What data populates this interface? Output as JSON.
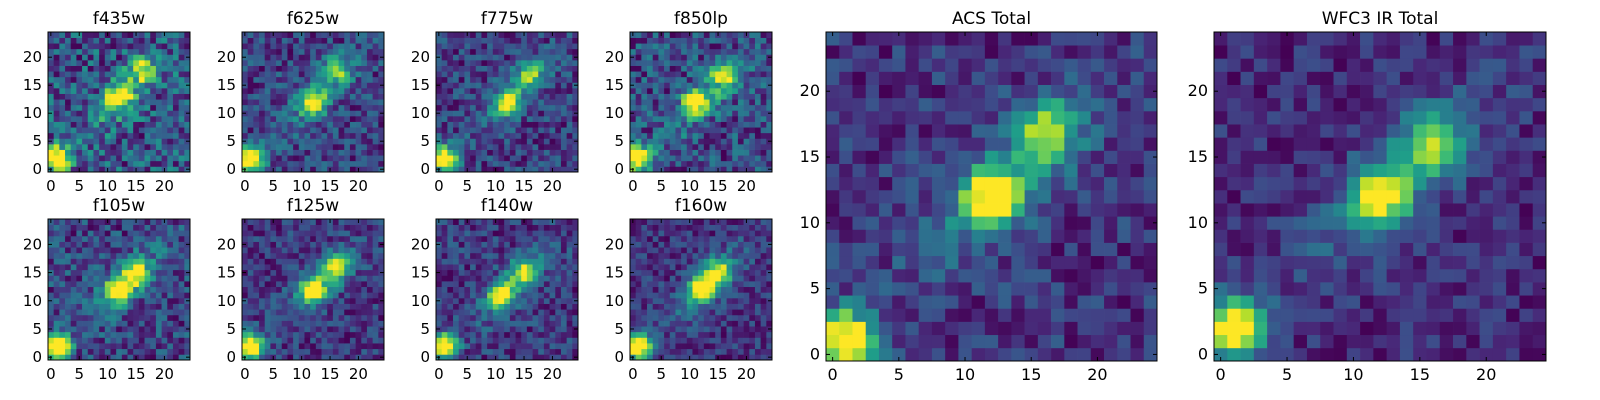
{
  "colors": {
    "colormap": "viridis",
    "frame": "#000000",
    "text": "#000000",
    "background": "#ffffff"
  },
  "chart_data": [
    {
      "type": "heatmap",
      "title": "f435w",
      "grid_size": 25,
      "xticks": [
        0,
        5,
        10,
        15,
        20
      ],
      "yticks": [
        0,
        5,
        10,
        15,
        20
      ],
      "xlim": [
        -0.5,
        24.5
      ],
      "ylim": [
        -0.5,
        24.5
      ],
      "source_peak": [
        1,
        2
      ],
      "clump_peaks": [
        [
          12,
          13
        ],
        [
          16,
          18
        ]
      ],
      "noise_level": 0.38,
      "colormap": "viridis"
    },
    {
      "type": "heatmap",
      "title": "f625w",
      "grid_size": 25,
      "xticks": [
        0,
        5,
        10,
        15,
        20
      ],
      "yticks": [
        0,
        5,
        10,
        15,
        20
      ],
      "xlim": [
        -0.5,
        24.5
      ],
      "ylim": [
        -0.5,
        24.5
      ],
      "source_peak": [
        1,
        2
      ],
      "clump_peaks": [
        [
          12,
          12
        ],
        [
          16,
          18
        ]
      ],
      "noise_level": 0.3,
      "colormap": "viridis"
    },
    {
      "type": "heatmap",
      "title": "f775w",
      "grid_size": 25,
      "xticks": [
        0,
        5,
        10,
        15,
        20
      ],
      "yticks": [
        0,
        5,
        10,
        15,
        20
      ],
      "xlim": [
        -0.5,
        24.5
      ],
      "ylim": [
        -0.5,
        24.5
      ],
      "source_peak": [
        1,
        2
      ],
      "clump_peaks": [
        [
          12,
          12
        ],
        [
          16,
          17
        ]
      ],
      "noise_level": 0.3,
      "colormap": "viridis"
    },
    {
      "type": "heatmap",
      "title": "f850lp",
      "grid_size": 25,
      "xticks": [
        0,
        5,
        10,
        15,
        20
      ],
      "yticks": [
        0,
        5,
        10,
        15,
        20
      ],
      "xlim": [
        -0.5,
        24.5
      ],
      "ylim": [
        -0.5,
        24.5
      ],
      "source_peak": [
        1,
        2
      ],
      "clump_peaks": [
        [
          11,
          12
        ],
        [
          16,
          17
        ]
      ],
      "noise_level": 0.33,
      "colormap": "viridis"
    },
    {
      "type": "heatmap",
      "title": "f105w",
      "grid_size": 25,
      "xticks": [
        0,
        5,
        10,
        15,
        20
      ],
      "yticks": [
        0,
        5,
        10,
        15,
        20
      ],
      "xlim": [
        -0.5,
        24.5
      ],
      "ylim": [
        -0.5,
        24.5
      ],
      "source_peak": [
        1,
        2
      ],
      "clump_peaks": [
        [
          12,
          12
        ],
        [
          15,
          15
        ]
      ],
      "noise_level": 0.28,
      "colormap": "viridis"
    },
    {
      "type": "heatmap",
      "title": "f125w",
      "grid_size": 25,
      "xticks": [
        0,
        5,
        10,
        15,
        20
      ],
      "yticks": [
        0,
        5,
        10,
        15,
        20
      ],
      "xlim": [
        -0.5,
        24.5
      ],
      "ylim": [
        -0.5,
        24.5
      ],
      "source_peak": [
        1,
        2
      ],
      "clump_peaks": [
        [
          12,
          12
        ],
        [
          16,
          16
        ]
      ],
      "noise_level": 0.24,
      "colormap": "viridis"
    },
    {
      "type": "heatmap",
      "title": "f140w",
      "grid_size": 25,
      "xticks": [
        0,
        5,
        10,
        15,
        20
      ],
      "yticks": [
        0,
        5,
        10,
        15,
        20
      ],
      "xlim": [
        -0.5,
        24.5
      ],
      "ylim": [
        -0.5,
        24.5
      ],
      "source_peak": [
        1,
        2
      ],
      "clump_peaks": [
        [
          11,
          11
        ],
        [
          15,
          15
        ]
      ],
      "noise_level": 0.26,
      "colormap": "viridis"
    },
    {
      "type": "heatmap",
      "title": "f160w",
      "grid_size": 25,
      "xticks": [
        0,
        5,
        10,
        15,
        20
      ],
      "yticks": [
        0,
        5,
        10,
        15,
        20
      ],
      "xlim": [
        -0.5,
        24.5
      ],
      "ylim": [
        -0.5,
        24.5
      ],
      "source_peak": [
        1,
        2
      ],
      "clump_peaks": [
        [
          12,
          12
        ],
        [
          15,
          15
        ]
      ],
      "noise_level": 0.2,
      "colormap": "viridis"
    },
    {
      "type": "heatmap",
      "title": "ACS Total",
      "grid_size": 25,
      "xticks": [
        0,
        5,
        10,
        15,
        20
      ],
      "yticks": [
        0,
        5,
        10,
        15,
        20
      ],
      "xlim": [
        -0.5,
        24.5
      ],
      "ylim": [
        -0.5,
        24.5
      ],
      "source_peak": [
        1,
        1
      ],
      "clump_peaks": [
        [
          12,
          12
        ],
        [
          16,
          17
        ]
      ],
      "noise_level": 0.22,
      "colormap": "viridis"
    },
    {
      "type": "heatmap",
      "title": "WFC3 IR Total",
      "grid_size": 25,
      "xticks": [
        0,
        5,
        10,
        15,
        20
      ],
      "yticks": [
        0,
        5,
        10,
        15,
        20
      ],
      "xlim": [
        -0.5,
        24.5
      ],
      "ylim": [
        -0.5,
        24.5
      ],
      "source_peak": [
        1,
        2
      ],
      "clump_peaks": [
        [
          12,
          12
        ],
        [
          16,
          16
        ]
      ],
      "noise_level": 0.18,
      "colormap": "viridis"
    }
  ]
}
